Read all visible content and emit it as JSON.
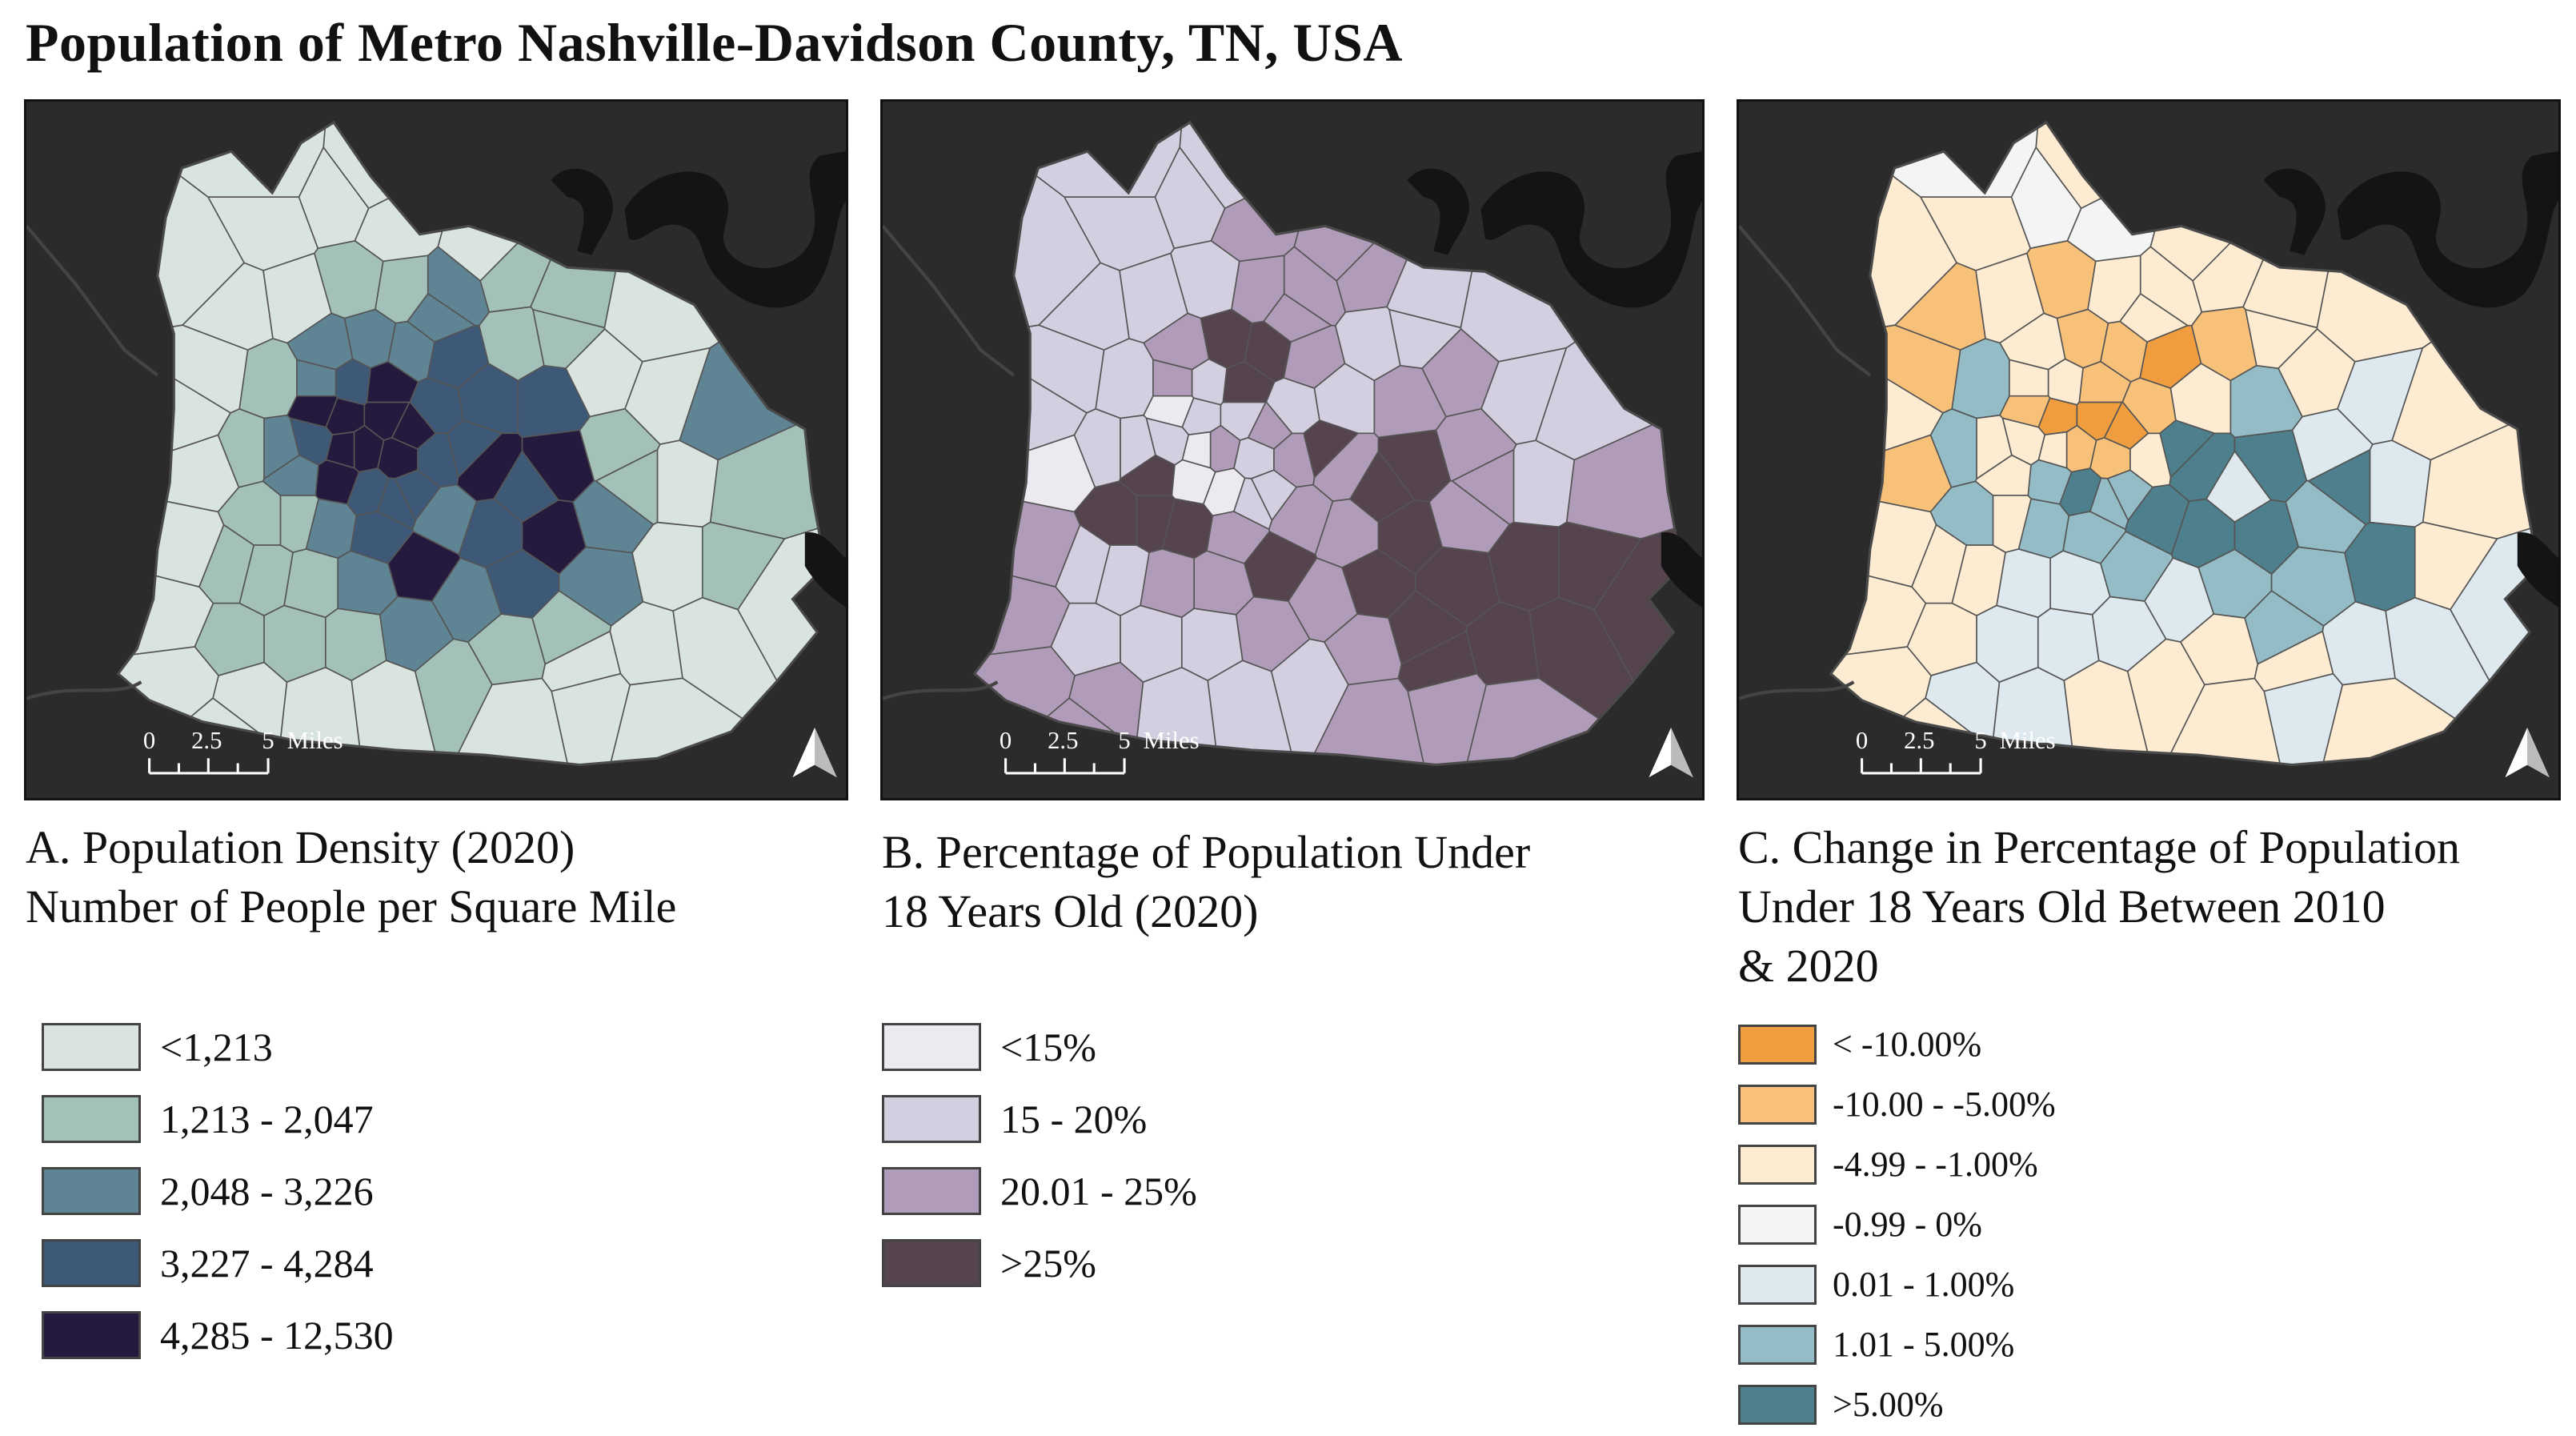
{
  "title": "Population of Metro Nashville-Davidson County, TN, USA",
  "map_colors": {
    "background": "#2b2b2b",
    "water": "#141414",
    "boundary": "#555555"
  },
  "scale_bar": {
    "labels": [
      "0",
      "2.5",
      "5"
    ],
    "unit": "Miles"
  },
  "north_arrow": "north-arrow-icon",
  "panels": [
    {
      "id": "a",
      "caption_lines": [
        "A. Population Density (2020)",
        "Number of People per Square Mile"
      ],
      "legend": [
        {
          "label": "<1,213",
          "color": "#d9e4de"
        },
        {
          "label": "1,213 - 2,047",
          "color": "#a3c1b8"
        },
        {
          "label": "2,048 - 3,226",
          "color": "#5f8494"
        },
        {
          "label": "3,227 - 4,284",
          "color": "#3e5978"
        },
        {
          "label": "4,285 - 12,530",
          "color": "#231a3d"
        }
      ]
    },
    {
      "id": "b",
      "caption_lines": [
        "B. Percentage of Population Under",
        "18 Years Old (2020)"
      ],
      "legend": [
        {
          "label": "<15%",
          "color": "#eceaf0"
        },
        {
          "label": "15 - 20%",
          "color": "#d3cfe0"
        },
        {
          "label": "20.01 - 25%",
          "color": "#b09cb8"
        },
        {
          "label": ">25%",
          "color": "#55434d"
        }
      ]
    },
    {
      "id": "c",
      "caption_lines": [
        "C. Change in Percentage of Population",
        "Under 18 Years Old Between 2010",
        "& 2020"
      ],
      "legend": [
        {
          "label": "< -10.00%",
          "color": "#ef9d3f"
        },
        {
          "label": "-10.00 - -5.00%",
          "color": "#f8c17a"
        },
        {
          "label": "-4.99 - -1.00%",
          "color": "#fdebd2"
        },
        {
          "label": "-0.99 - 0%",
          "color": "#f4f4f4"
        },
        {
          "label": "0.01 - 1.00%",
          "color": "#dde9ee"
        },
        {
          "label": "1.01 - 5.00%",
          "color": "#94bcc6"
        },
        {
          "label": ">5.00%",
          "color": "#4e7f8c"
        }
      ]
    }
  ]
}
